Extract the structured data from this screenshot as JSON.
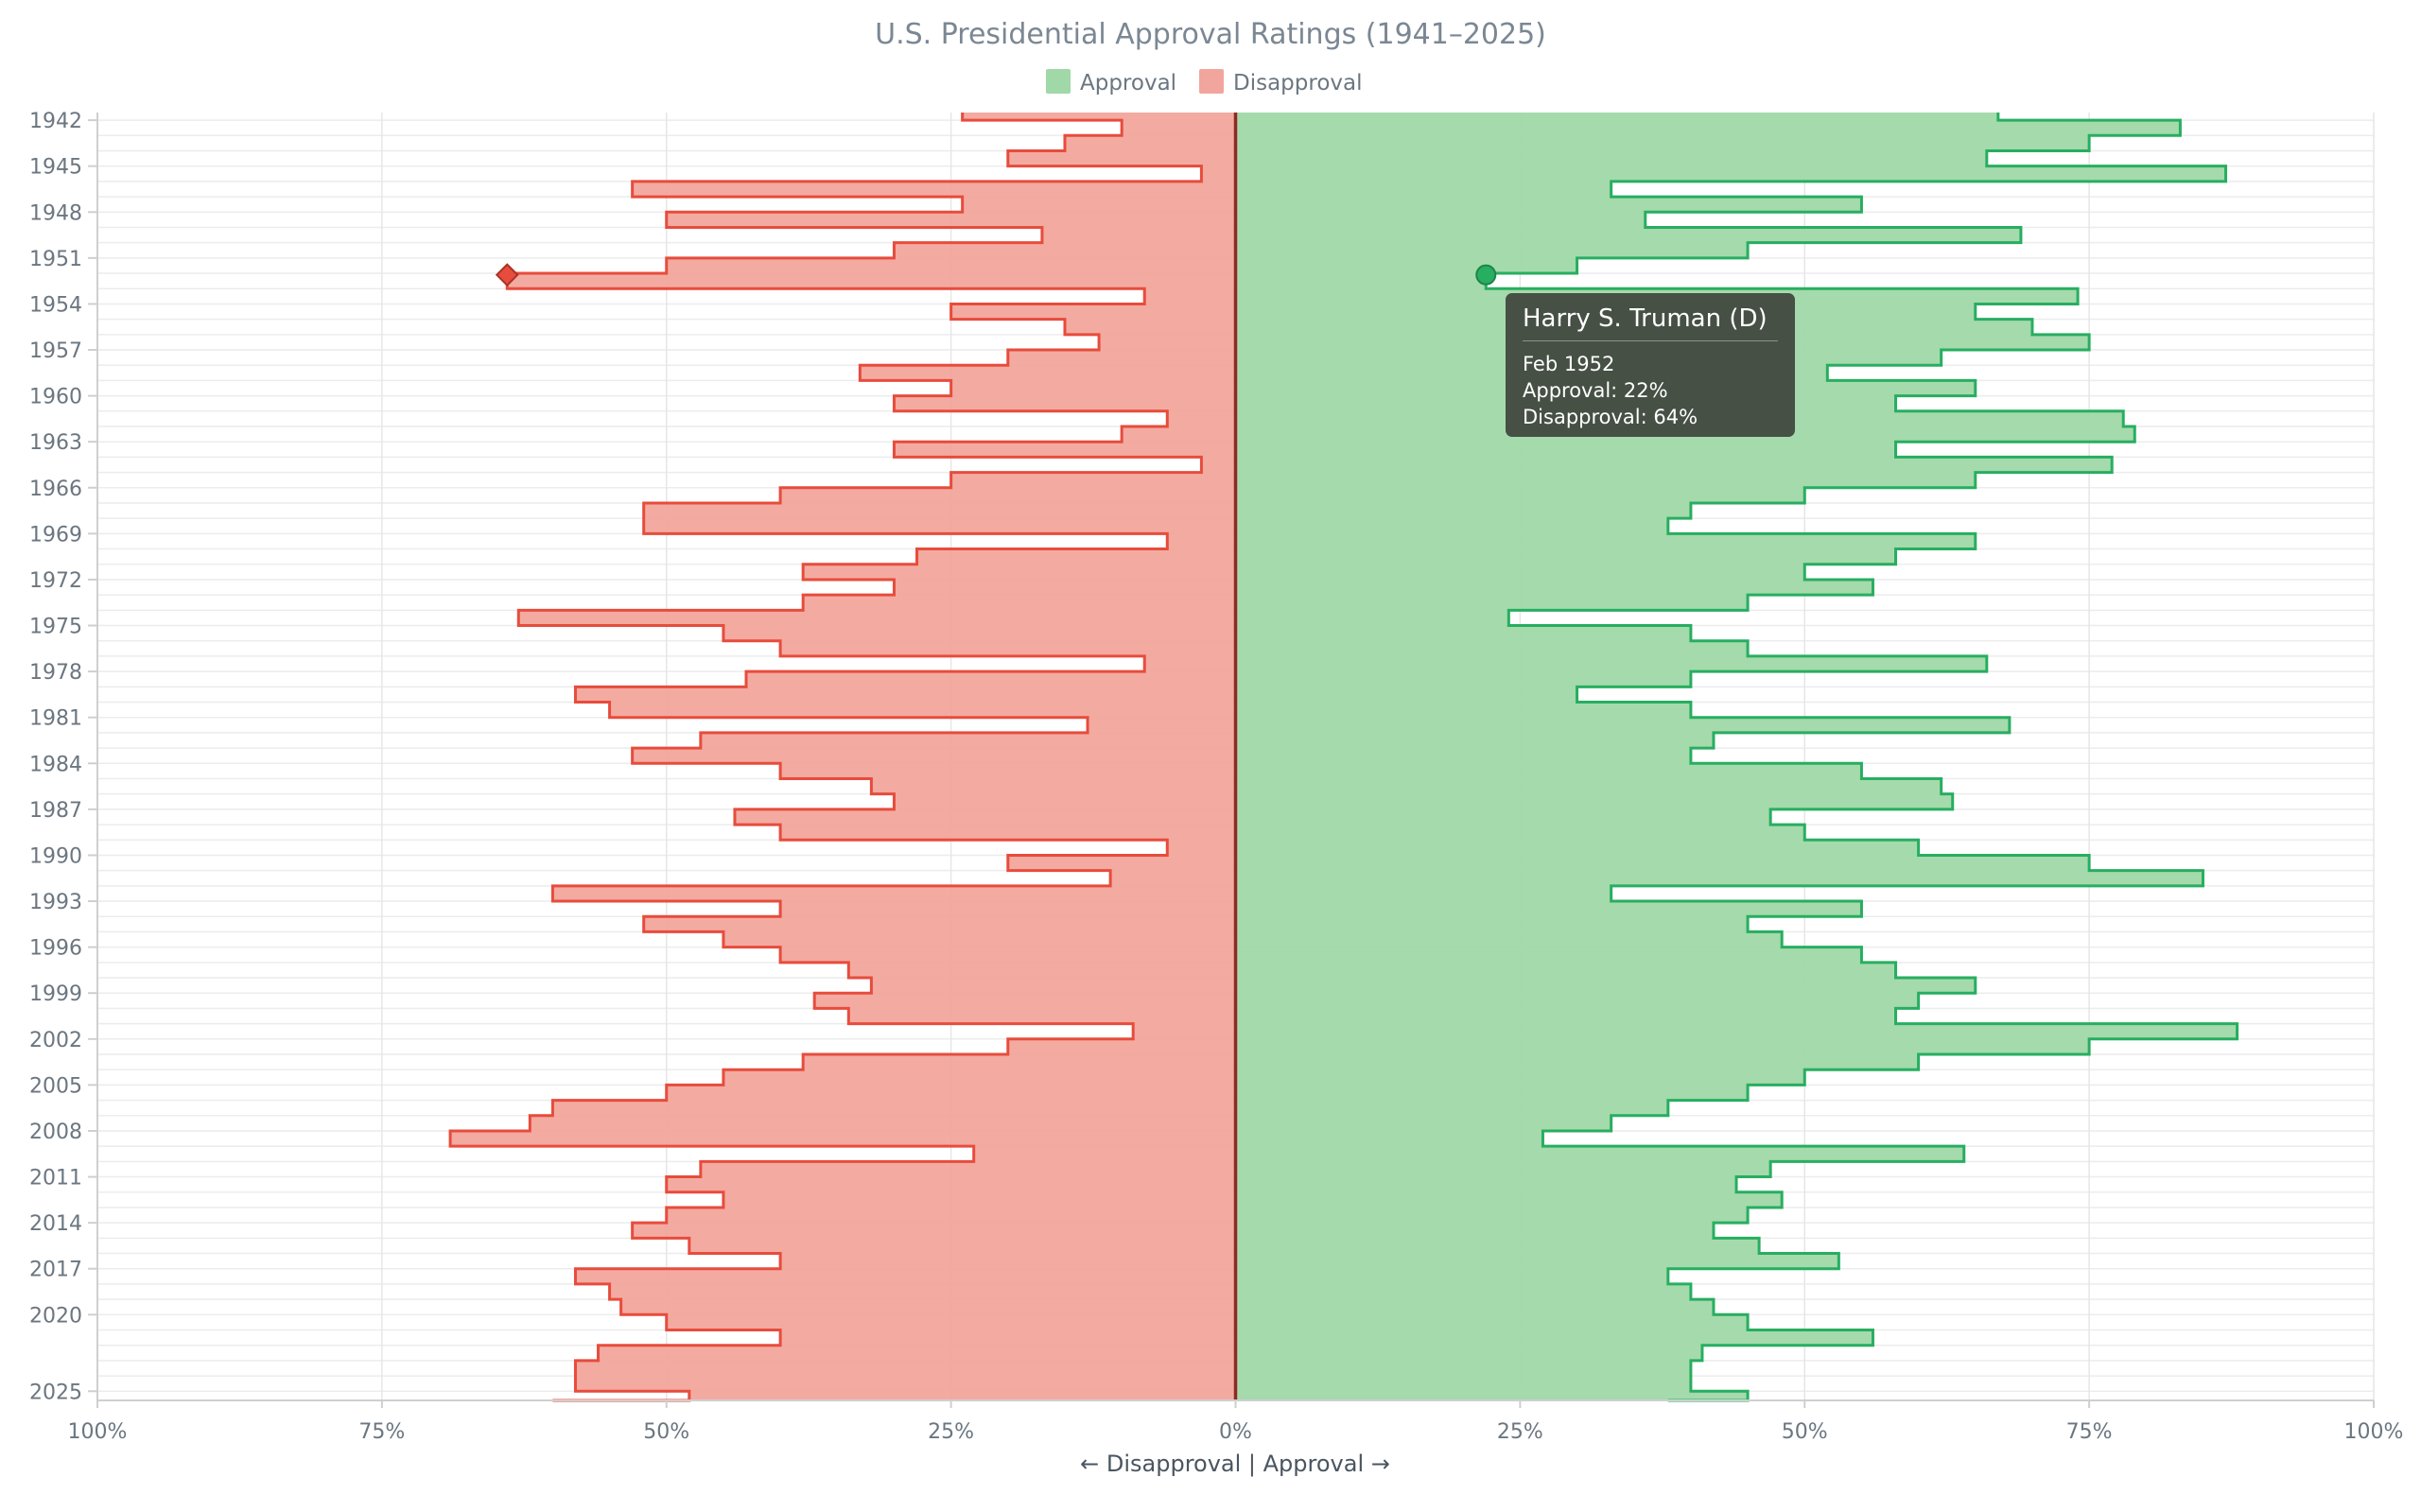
{
  "chart_data": {
    "type": "area",
    "orientation": "horizontal-diverging",
    "title": "U.S. Presidential Approval Ratings (1941–2025)",
    "xlabel": "← Disapproval | Approval →",
    "ylabel": "",
    "xlim": [
      -100,
      100
    ],
    "ylim": [
      1941.5,
      2025.6
    ],
    "x_tick_labels": [
      "100%",
      "75%",
      "50%",
      "25%",
      "0%",
      "25%",
      "50%",
      "75%",
      "100%"
    ],
    "y_tick_labels": [
      "1942",
      "1945",
      "1948",
      "1951",
      "1954",
      "1957",
      "1960",
      "1963",
      "1966",
      "1969",
      "1972",
      "1975",
      "1978",
      "1981",
      "1984",
      "1987",
      "1990",
      "1993",
      "1996",
      "1999",
      "2002",
      "2005",
      "2008",
      "2011",
      "2014",
      "2017",
      "2020",
      "2025"
    ],
    "grid": true,
    "legend": {
      "placement": "top-center",
      "items": [
        "Approval",
        "Disapproval"
      ]
    },
    "colors": {
      "approval_fill": "#a0d8a8",
      "approval_line": "#27ae60",
      "disapproval_fill": "#f2a59c",
      "disapproval_line": "#e74c3c",
      "zero_line": "#8e2a22"
    },
    "years": [
      1941.5,
      1942,
      1943,
      1944,
      1945,
      1946,
      1947,
      1948,
      1949,
      1950,
      1951,
      1952,
      1953,
      1954,
      1955,
      1956,
      1957,
      1958,
      1959,
      1960,
      1961,
      1962,
      1963,
      1964,
      1965,
      1966,
      1967,
      1968,
      1969,
      1970,
      1971,
      1972,
      1973,
      1974,
      1975,
      1976,
      1977,
      1978,
      1979,
      1980,
      1981,
      1982,
      1983,
      1984,
      1985,
      1986,
      1987,
      1988,
      1989,
      1990,
      1991,
      1992,
      1993,
      1994,
      1995,
      1996,
      1997,
      1998,
      1999,
      2000,
      2001,
      2002,
      2003,
      2004,
      2005,
      2006,
      2007,
      2008,
      2009,
      2010,
      2011,
      2012,
      2013,
      2014,
      2015,
      2016,
      2017,
      2018,
      2019,
      2020,
      2021,
      2022,
      2023,
      2024,
      2025,
      2025.6
    ],
    "series": [
      {
        "name": "Approval",
        "values": [
          67,
          83,
          75,
          66,
          87,
          33,
          55,
          36,
          69,
          45,
          30,
          22,
          74,
          65,
          70,
          75,
          62,
          52,
          65,
          58,
          78,
          79,
          58,
          77,
          65,
          50,
          40,
          38,
          65,
          58,
          50,
          56,
          45,
          24,
          40,
          45,
          66,
          40,
          30,
          40,
          68,
          42,
          40,
          55,
          62,
          63,
          47,
          50,
          60,
          75,
          85,
          33,
          55,
          45,
          48,
          55,
          58,
          65,
          60,
          58,
          88,
          75,
          60,
          50,
          45,
          38,
          33,
          27,
          64,
          47,
          44,
          48,
          45,
          42,
          46,
          53,
          38,
          40,
          42,
          45,
          56,
          41,
          40,
          40,
          45,
          38
        ]
      },
      {
        "name": "Disapproval",
        "values": [
          24,
          10,
          15,
          20,
          3,
          53,
          24,
          50,
          17,
          30,
          50,
          64,
          8,
          25,
          15,
          12,
          20,
          33,
          25,
          30,
          6,
          10,
          30,
          3,
          25,
          40,
          52,
          52,
          6,
          28,
          38,
          30,
          38,
          63,
          45,
          40,
          8,
          43,
          58,
          55,
          13,
          47,
          53,
          40,
          32,
          30,
          44,
          40,
          6,
          20,
          11,
          60,
          40,
          52,
          45,
          40,
          34,
          32,
          37,
          34,
          9,
          20,
          38,
          45,
          50,
          60,
          62,
          69,
          23,
          47,
          50,
          45,
          50,
          53,
          48,
          40,
          58,
          55,
          54,
          50,
          40,
          56,
          58,
          58,
          48,
          60
        ]
      }
    ],
    "hover": {
      "year": 1952.1,
      "approval": 22,
      "disapproval": 64
    }
  },
  "tooltip": {
    "title": "Harry S. Truman (D)",
    "date": "Feb 1952",
    "approval": "Approval: 22%",
    "disapproval": "Disapproval: 64%"
  }
}
